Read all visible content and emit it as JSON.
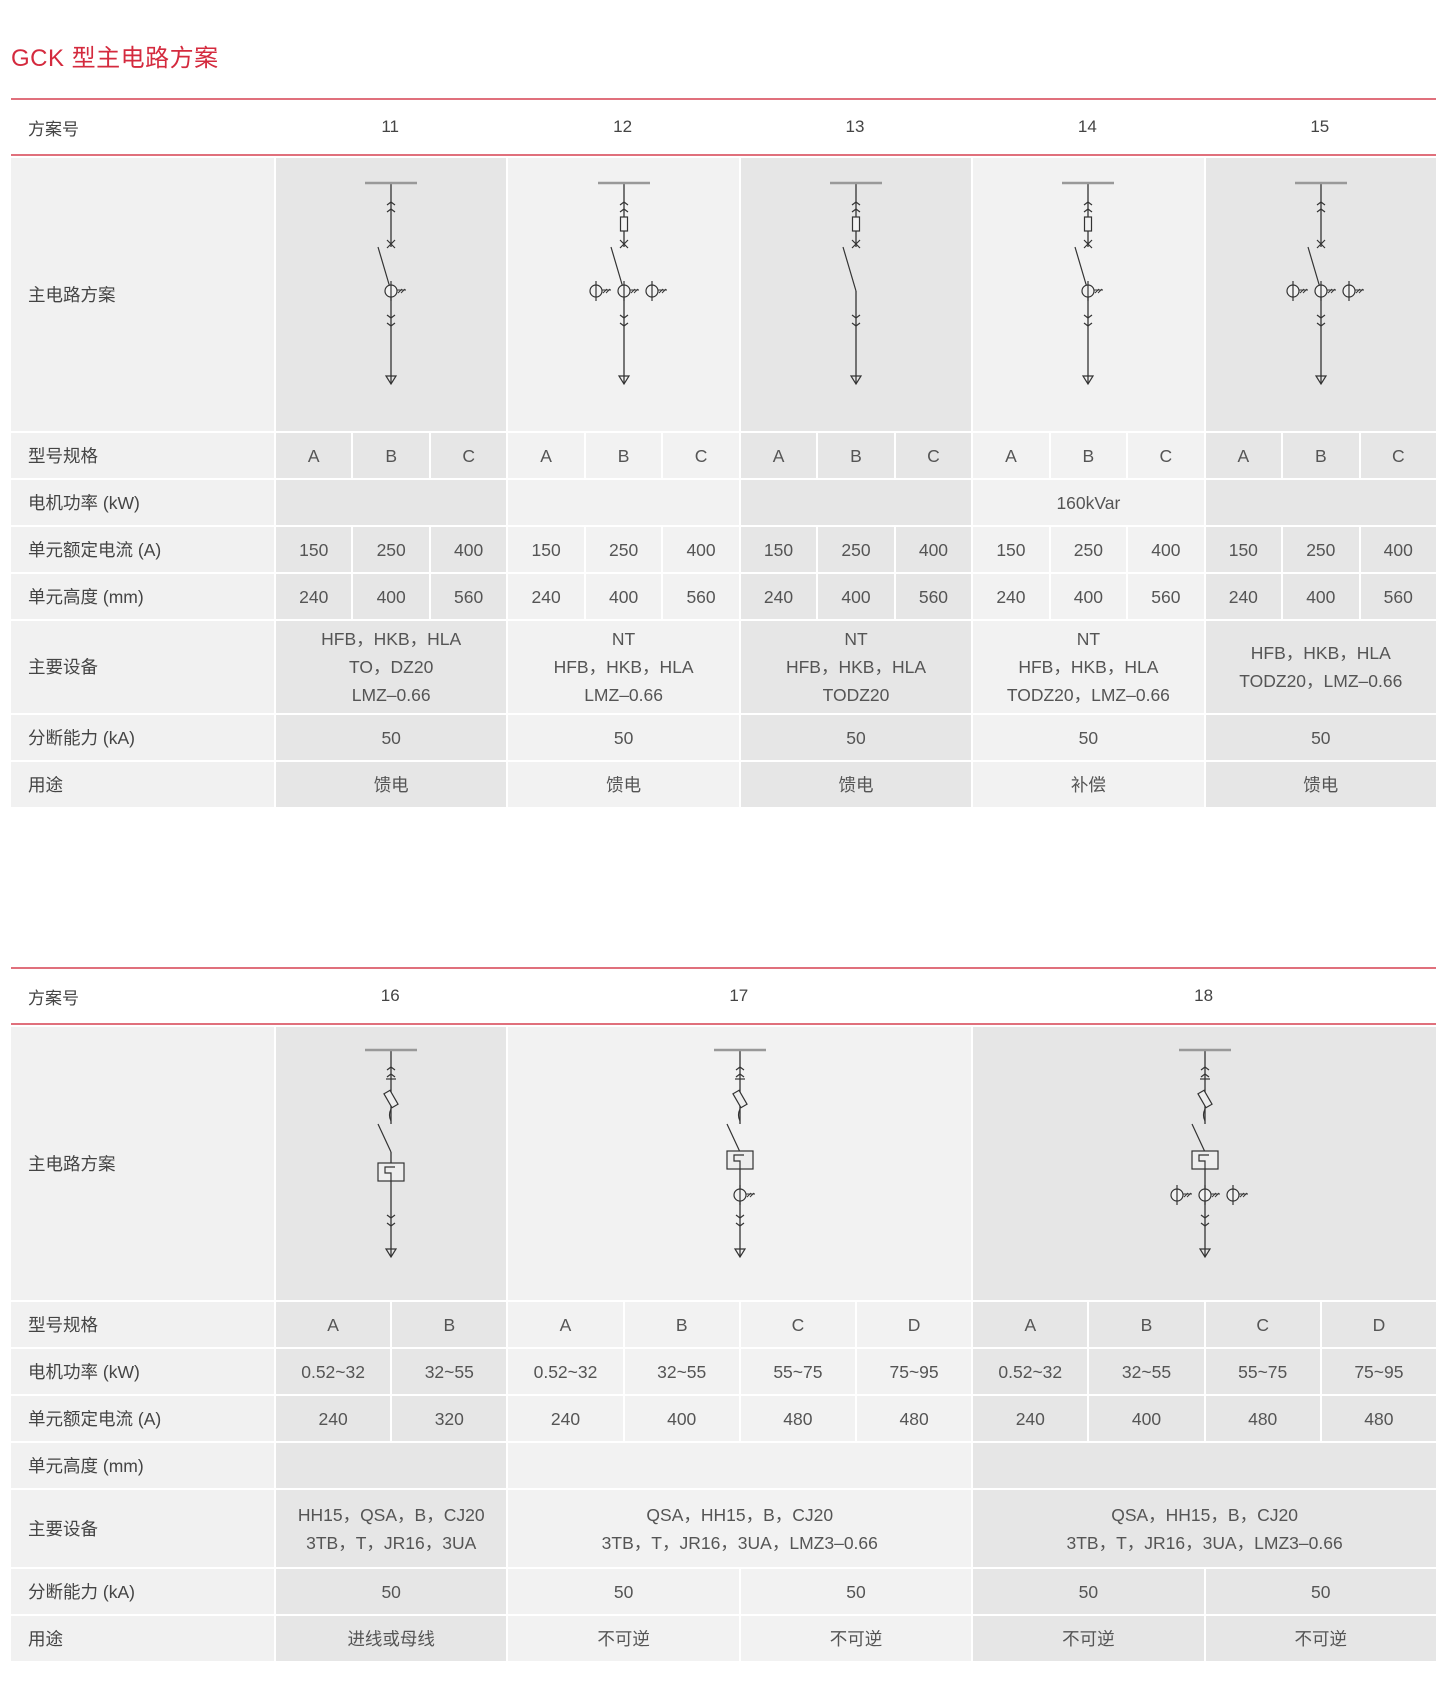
{
  "title": "GCK 型主电路方案",
  "tables": [
    {
      "header_label": "方案号",
      "diagram_label": "主电路方案",
      "model_label": "型号规格",
      "schemes": [
        {
          "no": "11",
          "models": [
            "A",
            "B",
            "C"
          ],
          "components": [
            "busbar",
            "plug-up",
            "breaker",
            "switch",
            "ct",
            "plug-down",
            "cable-end"
          ]
        },
        {
          "no": "12",
          "models": [
            "A",
            "B",
            "C"
          ],
          "components": [
            "busbar",
            "plug-up",
            "fuse",
            "breaker",
            "switch",
            "ct-3",
            "plug-down",
            "cable-end"
          ]
        },
        {
          "no": "13",
          "models": [
            "A",
            "B",
            "C"
          ],
          "components": [
            "busbar",
            "plug-up",
            "fuse",
            "breaker",
            "switch",
            "plug-down",
            "cable-end"
          ]
        },
        {
          "no": "14",
          "models": [
            "A",
            "B",
            "C"
          ],
          "components": [
            "busbar",
            "plug-up",
            "fuse",
            "breaker",
            "switch",
            "ct",
            "plug-down",
            "cable-end"
          ]
        },
        {
          "no": "15",
          "models": [
            "A",
            "B",
            "C"
          ],
          "components": [
            "busbar",
            "plug-up",
            "breaker",
            "switch",
            "ct-3",
            "plug-down",
            "cable-end"
          ]
        }
      ],
      "rows": [
        {
          "label": "电机功率 (kW)",
          "cells": [
            {
              "text": "",
              "span": 3
            },
            {
              "text": "",
              "span": 3
            },
            {
              "text": "",
              "span": 3
            },
            {
              "text": "160kVar",
              "span": 3
            },
            {
              "text": "",
              "span": 3
            }
          ]
        },
        {
          "label": "单元额定电流 (A)",
          "cells": [
            {
              "text": "150",
              "span": 1
            },
            {
              "text": "250",
              "span": 1
            },
            {
              "text": "400",
              "span": 1
            },
            {
              "text": "150",
              "span": 1
            },
            {
              "text": "250",
              "span": 1
            },
            {
              "text": "400",
              "span": 1
            },
            {
              "text": "150",
              "span": 1
            },
            {
              "text": "250",
              "span": 1
            },
            {
              "text": "400",
              "span": 1
            },
            {
              "text": "150",
              "span": 1
            },
            {
              "text": "250",
              "span": 1
            },
            {
              "text": "400",
              "span": 1
            },
            {
              "text": "150",
              "span": 1
            },
            {
              "text": "250",
              "span": 1
            },
            {
              "text": "400",
              "span": 1
            }
          ]
        },
        {
          "label": "单元高度 (mm)",
          "cells": [
            {
              "text": "240",
              "span": 1
            },
            {
              "text": "400",
              "span": 1
            },
            {
              "text": "560",
              "span": 1
            },
            {
              "text": "240",
              "span": 1
            },
            {
              "text": "400",
              "span": 1
            },
            {
              "text": "560",
              "span": 1
            },
            {
              "text": "240",
              "span": 1
            },
            {
              "text": "400",
              "span": 1
            },
            {
              "text": "560",
              "span": 1
            },
            {
              "text": "240",
              "span": 1
            },
            {
              "text": "400",
              "span": 1
            },
            {
              "text": "560",
              "span": 1
            },
            {
              "text": "240",
              "span": 1
            },
            {
              "text": "400",
              "span": 1
            },
            {
              "text": "560",
              "span": 1
            }
          ]
        },
        {
          "label": "主要设备",
          "tall": true,
          "cells": [
            {
              "text": "HFB，HKB，HLA\nTO，DZ20\nLMZ–0.66",
              "span": 3
            },
            {
              "text": "NT\nHFB，HKB，HLA\nLMZ–0.66",
              "span": 3
            },
            {
              "text": "NT\nHFB，HKB，HLA\nTODZ20",
              "span": 3
            },
            {
              "text": "NT\nHFB，HKB，HLA\nTODZ20，LMZ–0.66",
              "span": 3
            },
            {
              "text": "HFB，HKB，HLA\nTODZ20，LMZ–0.66",
              "span": 3
            }
          ]
        },
        {
          "label": "分断能力 (kA)",
          "cells": [
            {
              "text": "50",
              "span": 3
            },
            {
              "text": "50",
              "span": 3
            },
            {
              "text": "50",
              "span": 3
            },
            {
              "text": "50",
              "span": 3
            },
            {
              "text": "50",
              "span": 3
            }
          ]
        },
        {
          "label": "用途",
          "cells": [
            {
              "text": "馈电",
              "span": 3
            },
            {
              "text": "馈电",
              "span": 3
            },
            {
              "text": "馈电",
              "span": 3
            },
            {
              "text": "补偿",
              "span": 3
            },
            {
              "text": "馈电",
              "span": 3
            }
          ]
        }
      ]
    },
    {
      "header_label": "方案号",
      "diagram_label": "主电路方案",
      "model_label": "型号规格",
      "schemes": [
        {
          "no": "16",
          "models": [
            "A",
            "B"
          ],
          "components": [
            "busbar",
            "plug-up",
            "isolator",
            "fuse-diag",
            "switch",
            "thermal-relay",
            "plug-down",
            "cable-end"
          ]
        },
        {
          "no": "17",
          "models": [
            "A",
            "B",
            "C",
            "D"
          ],
          "components": [
            "busbar",
            "plug-up",
            "isolator",
            "fuse-diag",
            "switch",
            "thermal-relay-high",
            "ct-low",
            "plug-down",
            "cable-end"
          ]
        },
        {
          "no": "18",
          "models": [
            "A",
            "B",
            "C",
            "D"
          ],
          "components": [
            "busbar",
            "plug-up",
            "isolator",
            "fuse-diag",
            "switch",
            "thermal-relay-high",
            "ct-3-low",
            "plug-down",
            "cable-end"
          ]
        }
      ],
      "rows": [
        {
          "label": "电机功率 (kW)",
          "cells": [
            {
              "text": "0.52~32",
              "span": 1
            },
            {
              "text": "32~55",
              "span": 1
            },
            {
              "text": "0.52~32",
              "span": 1
            },
            {
              "text": "32~55",
              "span": 1
            },
            {
              "text": "55~75",
              "span": 1
            },
            {
              "text": "75~95",
              "span": 1
            },
            {
              "text": "0.52~32",
              "span": 1
            },
            {
              "text": "32~55",
              "span": 1
            },
            {
              "text": "55~75",
              "span": 1
            },
            {
              "text": "75~95",
              "span": 1
            }
          ]
        },
        {
          "label": "单元额定电流 (A)",
          "cells": [
            {
              "text": "240",
              "span": 1
            },
            {
              "text": "320",
              "span": 1
            },
            {
              "text": "240",
              "span": 1
            },
            {
              "text": "400",
              "span": 1
            },
            {
              "text": "480",
              "span": 1
            },
            {
              "text": "480",
              "span": 1
            },
            {
              "text": "240",
              "span": 1
            },
            {
              "text": "400",
              "span": 1
            },
            {
              "text": "480",
              "span": 1
            },
            {
              "text": "480",
              "span": 1
            }
          ]
        },
        {
          "label": "单元高度 (mm)",
          "cells": [
            {
              "text": "",
              "span": 2
            },
            {
              "text": "",
              "span": 4
            },
            {
              "text": "",
              "span": 4
            }
          ]
        },
        {
          "label": "主要设备",
          "tall": true,
          "cells": [
            {
              "text": "HH15，QSA，B，CJ20\n3TB，T，JR16，3UA",
              "span": 2
            },
            {
              "text": "QSA，HH15，B，CJ20\n3TB，T，JR16，3UA，LMZ3–0.66",
              "span": 4
            },
            {
              "text": "QSA，HH15，B，CJ20\n3TB，T，JR16，3UA，LMZ3–0.66",
              "span": 4
            }
          ]
        },
        {
          "label": "分断能力 (kA)",
          "cells": [
            {
              "text": "50",
              "span": 2
            },
            {
              "text": "50",
              "span": 2
            },
            {
              "text": "50",
              "span": 2
            },
            {
              "text": "50",
              "span": 2
            },
            {
              "text": "50",
              "span": 2
            }
          ]
        },
        {
          "label": "用途",
          "cells": [
            {
              "text": "进线或母线",
              "span": 2
            },
            {
              "text": "不可逆",
              "span": 2
            },
            {
              "text": "不可逆",
              "span": 2
            },
            {
              "text": "不可逆",
              "span": 2
            },
            {
              "text": "不可逆",
              "span": 2
            }
          ]
        }
      ]
    }
  ]
}
